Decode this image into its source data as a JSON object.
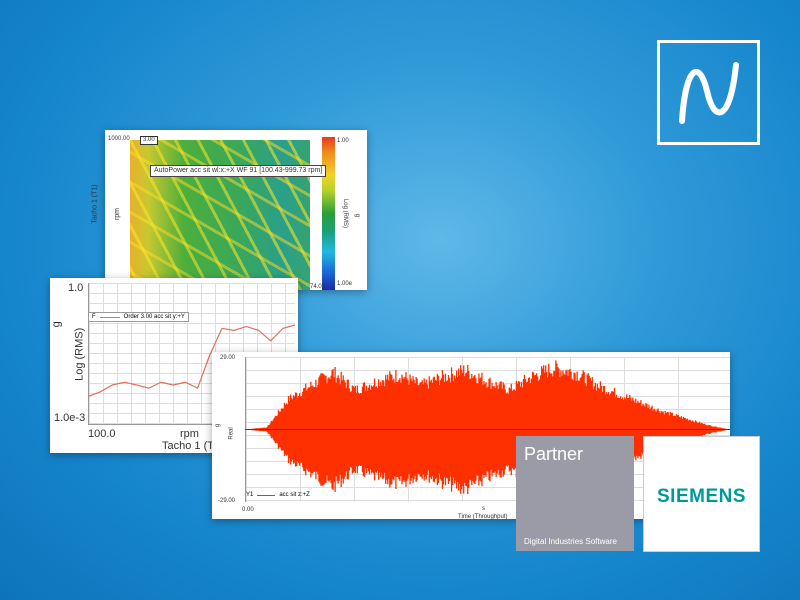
{
  "logo": {
    "icon": "sine-wave-icon"
  },
  "spectrogram": {
    "y_top": "1000.00",
    "cursor": "3.00",
    "x_end": "74.02",
    "ylabel": "Tacho 1 (T1)",
    "yunit": "rpm",
    "tooltip": "AutoPower acc sit wl:x:+X WF 91 [100.43-999.73 rpm]",
    "cbar_max": "1.00",
    "cbar_min": "1.00e",
    "cbar_label": "Log (RMS)",
    "cbar_unit": "g"
  },
  "order_plot": {
    "y_max": "1.0",
    "y_min": "1.0e-3",
    "ylabel": "Log (RMS)",
    "yunit": "g",
    "x_start": "100.0",
    "x_unit": "rpm",
    "xlabel": "Tacho 1 (T",
    "legend_box": "F",
    "legend": "Order 3.00 acc sit y:+Y",
    "color": "#e07060"
  },
  "waveform": {
    "y_max": "29.00",
    "y_min": "-29.00",
    "x_start": "0.00",
    "x_unit": "s",
    "xlabel": "Time (Throughput)",
    "ylabel": "Real",
    "yunit": "g",
    "legend_box": "Y1",
    "legend": "acc sit z:+Z",
    "color": "#ff3000"
  },
  "chart_data": [
    {
      "type": "line",
      "series": [
        {
          "name": "Order 3.00 acc sit y:+Y",
          "values": [
            0.004,
            0.005,
            0.007,
            0.008,
            0.007,
            0.006,
            0.008,
            0.007,
            0.008,
            0.006,
            0.03,
            0.11,
            0.1,
            0.12,
            0.1,
            0.06,
            0.11,
            0.13
          ]
        }
      ],
      "ylim": [
        0.001,
        1.0
      ],
      "yscale": "log",
      "ylabel": "Log (RMS)",
      "xlabel": "Tacho 1 (T"
    },
    {
      "type": "area",
      "series": [
        {
          "name": "acc sit z:+Z",
          "values": [
            0,
            1,
            14,
            20,
            26,
            18,
            22,
            25,
            20,
            24,
            27,
            22,
            18,
            24,
            28,
            26,
            20,
            16,
            12,
            8,
            5,
            2,
            0
          ]
        }
      ],
      "ylim": [
        -29,
        29
      ],
      "ylabel": "Real",
      "xlabel": "Time (Throughput)"
    }
  ],
  "partner": {
    "title": "Partner",
    "subtitle": "Digital Industries Software",
    "color": "#9b9aa7"
  },
  "siemens": {
    "name": "SIEMENS",
    "color": "#009999"
  }
}
